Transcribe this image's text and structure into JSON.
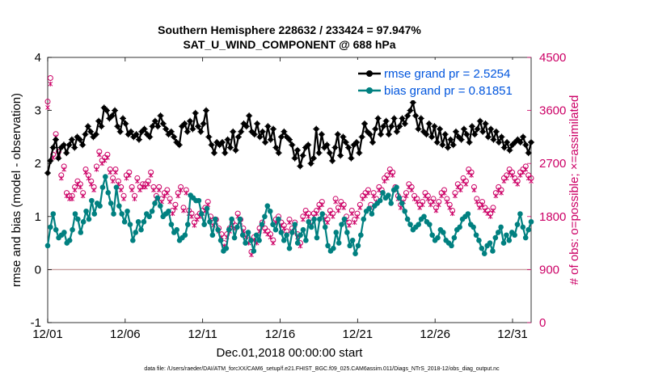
{
  "chart_data": {
    "type": "line",
    "title_line1": "Southern Hemisphere 228632 / 233424 = 97.947%",
    "title_line2": "SAT_U_WIND_COMPONENT @ 688 hPa",
    "xlabel": "Dec.01,2018 00:00:00 start",
    "ylabel": "rmse and bias (model - observation)",
    "y2label": "# of obs: o=possible; ×=assimilated",
    "footnote": "data file: /Users/raeder/DAI/ATM_forcXX/CAM6_setup/f.e21.FHIST_BGC.f09_025.CAM6assim.011/Diags_NTrS_2018-12/obs_diag_output.nc",
    "x_range": [
      0,
      31.2
    ],
    "ylim": [
      -1,
      4
    ],
    "y2lim": [
      0,
      4500
    ],
    "x_ticks": [
      0,
      5,
      10,
      15,
      20,
      25,
      30
    ],
    "x_tick_labels": [
      "12/01",
      "12/06",
      "12/11",
      "12/16",
      "12/21",
      "12/26",
      "12/31"
    ],
    "y_ticks": [
      -1,
      0,
      1,
      2,
      3,
      4
    ],
    "y_tick_labels": [
      "-1",
      "0",
      "1",
      "2",
      "3",
      "4"
    ],
    "y2_ticks": [
      0,
      900,
      1800,
      2700,
      3600,
      4500
    ],
    "y2_tick_labels": [
      "0",
      "900",
      "1800",
      "2700",
      "3600",
      "4500"
    ],
    "zero_line_color": "#c8a0a0",
    "colors": {
      "rmse": "#000000",
      "bias": "#008080",
      "obs": "#cc0066",
      "legend_text": "#0055dd"
    },
    "series": [
      {
        "name": "rmse",
        "legend": "rmse grand pr = 2.5254",
        "values": [
          1.82,
          2.05,
          2.3,
          2.45,
          2.1,
          2.3,
          2.35,
          2.2,
          2.35,
          2.45,
          2.3,
          2.5,
          2.45,
          2.35,
          2.55,
          2.7,
          2.6,
          2.5,
          2.55,
          2.8,
          2.7,
          3.05,
          3.0,
          2.85,
          2.9,
          3.0,
          2.7,
          2.6,
          2.85,
          2.75,
          2.55,
          2.6,
          2.5,
          2.55,
          2.45,
          2.6,
          2.65,
          2.55,
          2.5,
          2.7,
          2.8,
          2.7,
          2.9,
          2.75,
          2.65,
          2.55,
          2.6,
          2.5,
          2.4,
          2.35,
          2.7,
          2.75,
          2.6,
          2.8,
          2.65,
          2.95,
          2.7,
          2.6,
          2.75,
          3.0,
          2.5,
          2.35,
          2.2,
          2.4,
          2.35,
          2.4,
          2.2,
          2.45,
          2.3,
          2.6,
          2.25,
          2.5,
          2.6,
          2.75,
          2.7,
          2.9,
          2.6,
          2.55,
          2.75,
          2.5,
          2.6,
          2.4,
          2.7,
          2.45,
          2.65,
          2.3,
          2.2,
          2.5,
          2.6,
          2.5,
          2.45,
          2.35,
          2.1,
          2.25,
          1.95,
          2.15,
          2.3,
          2.35,
          2.0,
          2.1,
          2.65,
          2.2,
          2.55,
          2.3,
          2.35,
          2.2,
          2.05,
          2.3,
          2.55,
          2.15,
          2.5,
          2.4,
          2.3,
          2.1,
          2.35,
          2.4,
          2.2,
          2.5,
          2.75,
          2.6,
          2.55,
          2.4,
          2.65,
          2.85,
          2.55,
          2.7,
          2.8,
          2.55,
          2.7,
          2.85,
          2.6,
          2.7,
          2.85,
          2.75,
          2.9,
          3.0,
          3.15,
          2.9,
          2.65,
          2.85,
          2.6,
          2.55,
          2.75,
          2.5,
          2.7,
          2.4,
          2.65,
          2.35,
          2.55,
          2.3,
          2.45,
          2.35,
          2.6,
          2.5,
          2.45,
          2.65,
          2.55,
          2.4,
          2.7,
          2.55,
          2.65,
          2.8,
          2.6,
          2.75,
          2.5,
          2.65,
          2.45,
          2.6,
          2.4,
          2.5,
          2.3,
          2.4,
          2.25,
          2.35,
          2.4,
          2.45,
          2.4,
          2.5,
          2.35,
          2.2,
          2.4
        ]
      },
      {
        "name": "bias",
        "legend": "bias grand pr = 0.81851",
        "values": [
          0.45,
          0.8,
          1.05,
          0.75,
          0.6,
          0.65,
          0.7,
          0.5,
          0.55,
          0.75,
          1.05,
          0.95,
          0.7,
          0.9,
          1.1,
          0.95,
          1.3,
          1.05,
          1.25,
          1.2,
          1.55,
          1.75,
          1.45,
          1.25,
          1.05,
          1.55,
          1.2,
          1.05,
          0.9,
          1.1,
          0.85,
          0.55,
          0.7,
          0.9,
          0.75,
          0.9,
          1.05,
          1.0,
          1.1,
          1.25,
          1.35,
          1.2,
          1.0,
          1.05,
          1.1,
          0.85,
          0.7,
          0.75,
          0.55,
          0.6,
          0.65,
          0.85,
          1.4,
          1.35,
          1.3,
          1.3,
          1.05,
          0.85,
          1.15,
          0.9,
          0.65,
          0.95,
          0.75,
          0.55,
          0.35,
          0.4,
          0.75,
          0.95,
          0.6,
          0.8,
          0.95,
          0.65,
          0.5,
          0.7,
          0.55,
          0.35,
          0.65,
          0.55,
          0.85,
          1.0,
          1.2,
          1.1,
          0.85,
          0.75,
          0.95,
          0.7,
          0.55,
          0.65,
          0.4,
          0.7,
          0.85,
          0.5,
          0.65,
          0.75,
          0.55,
          0.9,
          0.8,
          0.95,
          0.6,
          0.95,
          1.05,
          0.8,
          0.45,
          0.35,
          0.4,
          0.7,
          0.5,
          0.85,
          0.95,
          0.7,
          0.45,
          0.55,
          0.3,
          0.45,
          0.65,
          0.95,
          1.1,
          1.15,
          1.05,
          1.2,
          1.25,
          1.3,
          1.45,
          1.35,
          1.4,
          1.25,
          1.5,
          1.55,
          1.35,
          1.25,
          1.1,
          0.95,
          0.85,
          0.75,
          0.8,
          0.85,
          0.95,
          1.0,
          0.9,
          0.85,
          0.65,
          0.55,
          0.6,
          0.75,
          0.7,
          0.55,
          0.5,
          0.45,
          0.6,
          0.75,
          0.8,
          0.95,
          1.0,
          1.05,
          0.85,
          0.8,
          0.65,
          0.55,
          0.4,
          0.3,
          0.45,
          0.5,
          0.35,
          0.6,
          0.7,
          0.8,
          0.5,
          0.65,
          0.55,
          0.7,
          0.65,
          0.85,
          1.05,
          0.8,
          0.6,
          0.75,
          0.9
        ]
      },
      {
        "name": "obs_possible",
        "axis": "right",
        "values": [
          3750,
          4150,
          2850,
          3200,
          2900,
          2500,
          2650,
          2200,
          2150,
          2150,
          2300,
          2400,
          2350,
          2200,
          2600,
          2500,
          2400,
          2300,
          2650,
          2900,
          2750,
          2800,
          2850,
          2600,
          2450,
          2600,
          2400,
          2300,
          2150,
          2500,
          2550,
          2300,
          2150,
          2450,
          2300,
          2350,
          2350,
          2400,
          2550,
          2300,
          2150,
          2300,
          2100,
          2200,
          2250,
          2100,
          1900,
          2000,
          2200,
          2300,
          1950,
          2250,
          1900,
          1850,
          1700,
          1800,
          1850,
          1900,
          1950,
          2050,
          1800,
          1700,
          1750,
          1600,
          1500,
          1350,
          1500,
          1600,
          1700,
          1650,
          1850,
          1750,
          1600,
          1500,
          1400,
          1200,
          1450,
          1400,
          1600,
          1700,
          1600,
          1550,
          1500,
          1400,
          1750,
          1800,
          1700,
          1650,
          1550,
          1750,
          1600,
          1700,
          1500,
          1350,
          1800,
          1900,
          1850,
          1700,
          1850,
          1900,
          2000,
          2050,
          1800,
          1750,
          1900,
          1850,
          2100,
          1950,
          2050,
          2000,
          1800,
          1700,
          1900,
          1750,
          1850,
          2000,
          2150,
          2200,
          2250,
          2000,
          2200,
          2100,
          2300,
          2250,
          2450,
          2500,
          2600,
          2550,
          2300,
          2150,
          2000,
          2100,
          2200,
          2350,
          2300,
          2150,
          2100,
          2000,
          2050,
          2200,
          2150,
          2050,
          2100,
          1950,
          2050,
          2200,
          2250,
          2100,
          2000,
          1900,
          2200,
          2350,
          2300,
          2450,
          2400,
          2600,
          2550,
          2300,
          2100,
          2000,
          2050,
          1950,
          1900,
          1850,
          1950,
          2200,
          2300,
          2250,
          2450,
          2500,
          2600,
          2550,
          2450,
          2400,
          2550,
          2600,
          2650,
          2500,
          2450
        ]
      },
      {
        "name": "obs_assimilated",
        "axis": "right",
        "values": [
          3650,
          4050,
          2800,
          3150,
          2850,
          2450,
          2600,
          2150,
          2100,
          2100,
          2250,
          2350,
          2300,
          2150,
          2550,
          2450,
          2350,
          2250,
          2600,
          2850,
          2700,
          2750,
          2800,
          2550,
          2400,
          2550,
          2350,
          2250,
          2100,
          2450,
          2500,
          2250,
          2100,
          2400,
          2250,
          2300,
          2300,
          2350,
          2500,
          2250,
          2100,
          2250,
          2050,
          2150,
          2200,
          2050,
          1850,
          1950,
          2150,
          2250,
          1900,
          2200,
          1850,
          1800,
          1650,
          1750,
          1800,
          1850,
          1900,
          2000,
          1750,
          1650,
          1700,
          1550,
          1450,
          1300,
          1450,
          1550,
          1650,
          1600,
          1800,
          1700,
          1550,
          1450,
          1350,
          1150,
          1400,
          1350,
          1550,
          1650,
          1550,
          1500,
          1450,
          1350,
          1700,
          1750,
          1650,
          1600,
          1500,
          1700,
          1550,
          1650,
          1450,
          1300,
          1750,
          1850,
          1800,
          1650,
          1800,
          1850,
          1950,
          2000,
          1750,
          1700,
          1850,
          1800,
          2050,
          1900,
          2000,
          1950,
          1750,
          1650,
          1850,
          1700,
          1800,
          1950,
          2100,
          2150,
          2200,
          1950,
          2150,
          2050,
          2250,
          2200,
          2400,
          2450,
          2550,
          2500,
          2250,
          2100,
          1950,
          2050,
          2150,
          2300,
          2250,
          2100,
          2050,
          1950,
          2000,
          2150,
          2100,
          2000,
          2050,
          1900,
          2000,
          2150,
          2200,
          2050,
          1950,
          1850,
          2150,
          2300,
          2250,
          2400,
          2350,
          2550,
          2500,
          2250,
          2050,
          1950,
          2000,
          1900,
          1850,
          1800,
          1900,
          2150,
          2250,
          2200,
          2400,
          2450,
          2550,
          2500,
          2400,
          2350,
          2500,
          2550,
          2600,
          2450,
          2400
        ]
      }
    ]
  }
}
